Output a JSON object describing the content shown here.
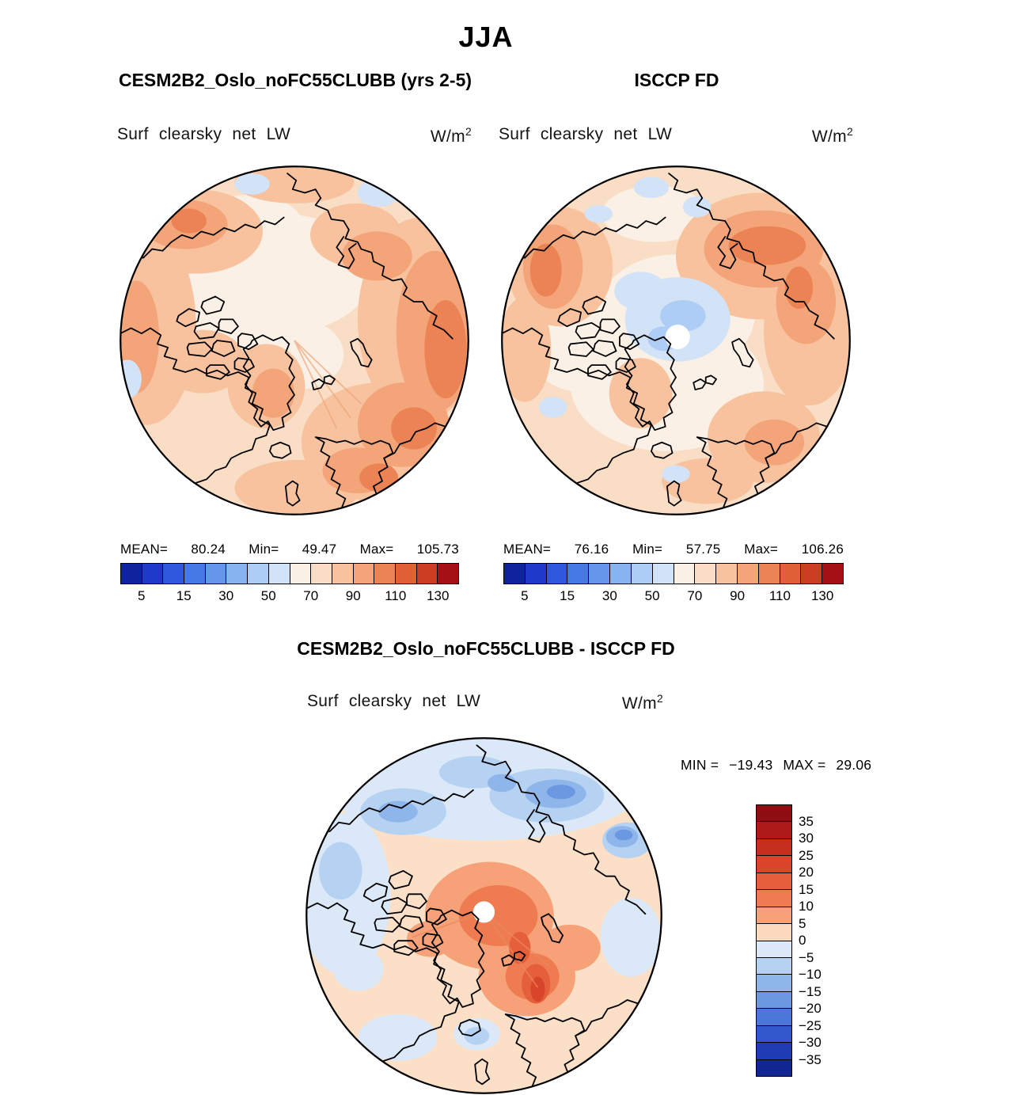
{
  "page": {
    "title": "JJA"
  },
  "panels": {
    "model": {
      "title": "CESM2B2_Oslo_noFC55CLUBB (yrs 2-5)",
      "variable": "Surf clearsky net LW",
      "units_base": "W/m",
      "units_exp": "2",
      "stats": {
        "mean_label": "MEAN=",
        "mean": "80.24",
        "min_label": "Min=",
        "min": "49.47",
        "max_label": "Max=",
        "max": "105.73"
      }
    },
    "obs": {
      "title": "ISCCP FD",
      "variable": "Surf clearsky net LW",
      "units_base": "W/m",
      "units_exp": "2",
      "stats": {
        "mean_label": "MEAN=",
        "mean": "76.16",
        "min_label": "Min=",
        "min": "57.75",
        "max_label": "Max=",
        "max": "106.26"
      }
    },
    "diff": {
      "title": "CESM2B2_Oslo_noFC55CLUBB - ISCCP FD",
      "variable": "Surf clearsky net LW",
      "units_base": "W/m",
      "units_exp": "2",
      "range": {
        "min_label": "MIN =",
        "min_value": "−19.43",
        "max_label": "MAX =",
        "max_value": "29.06"
      }
    }
  },
  "colorbars": {
    "top": {
      "colors": [
        "#10239e",
        "#1d3bc8",
        "#2f58dc",
        "#4678e6",
        "#6496ec",
        "#88b4f0",
        "#aecdf5",
        "#d2e3f8",
        "#faf0e6",
        "#f9ddc4",
        "#f7c29d",
        "#f3a478",
        "#ec8354",
        "#e16038",
        "#cb3d22",
        "#a31016"
      ],
      "tick_labels": [
        "5",
        "15",
        "30",
        "50",
        "70",
        "90",
        "110",
        "130"
      ]
    },
    "diff": {
      "colors": [
        "#8f0e12",
        "#ad1a17",
        "#c52e1c",
        "#d8452a",
        "#e55f3a",
        "#ef7c50",
        "#f6a177",
        "#fbd9bd",
        "#dbe8f8",
        "#b6d2f2",
        "#8fb6ea",
        "#6c98e2",
        "#4b78d8",
        "#3158cc",
        "#1f3cb4",
        "#122691"
      ],
      "tick_labels": [
        "35",
        "30",
        "25",
        "20",
        "15",
        "10",
        "5",
        "0",
        "−5",
        "−10",
        "−15",
        "−20",
        "−25",
        "−30",
        "−35"
      ]
    }
  },
  "chart_data": [
    {
      "type": "heatmap",
      "subtype": "filled-contour-map",
      "projection": "north-polar-stereographic",
      "season": "JJA",
      "title": "CESM2B2_Oslo_noFC55CLUBB (yrs 2-5)",
      "variable": "Surf clearsky net LW",
      "units": "W/m^2",
      "stats": {
        "mean": 80.24,
        "min": 49.47,
        "max": 105.73
      },
      "colorbar": {
        "orientation": "horizontal",
        "tick_values": [
          5,
          15,
          30,
          50,
          70,
          90,
          110,
          130
        ],
        "n_segments": 16,
        "palette": "blue-to-red"
      }
    },
    {
      "type": "heatmap",
      "subtype": "filled-contour-map",
      "projection": "north-polar-stereographic",
      "season": "JJA",
      "title": "ISCCP FD",
      "variable": "Surf clearsky net LW",
      "units": "W/m^2",
      "stats": {
        "mean": 76.16,
        "min": 57.75,
        "max": 106.26
      },
      "colorbar": {
        "orientation": "horizontal",
        "tick_values": [
          5,
          15,
          30,
          50,
          70,
          90,
          110,
          130
        ],
        "n_segments": 16,
        "palette": "blue-to-red"
      }
    },
    {
      "type": "heatmap",
      "subtype": "filled-contour-difference-map",
      "projection": "north-polar-stereographic",
      "season": "JJA",
      "title": "CESM2B2_Oslo_noFC55CLUBB - ISCCP FD",
      "variable": "Surf clearsky net LW",
      "units": "W/m^2",
      "stats": {
        "min": -19.43,
        "max": 29.06
      },
      "colorbar": {
        "orientation": "vertical",
        "tick_values": [
          35,
          30,
          25,
          20,
          15,
          10,
          5,
          0,
          -5,
          -10,
          -15,
          -20,
          -25,
          -30,
          -35
        ],
        "n_segments": 16,
        "palette": "red-to-blue"
      }
    }
  ]
}
